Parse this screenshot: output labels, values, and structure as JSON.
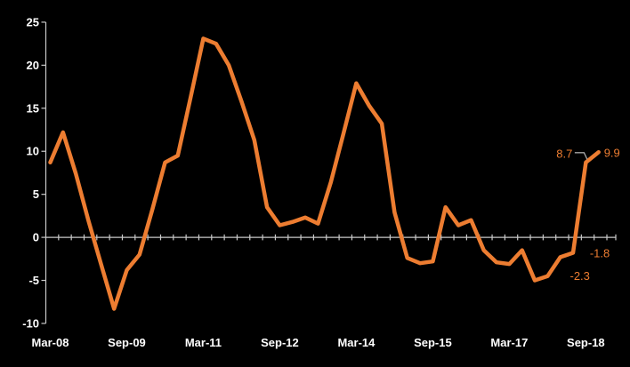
{
  "chart_data": {
    "type": "line",
    "title": "",
    "xlabel": "",
    "ylabel": "",
    "grid": false,
    "legend_position": "none",
    "background_color": "#000000",
    "series_color": "#ED7D31",
    "axis_color": "#C9C9C9",
    "axis_label_color": "#FFFFFF",
    "data_label_color": "#ED7D31",
    "leader_line_color": "#A6A6A6",
    "ylim": [
      -10,
      25
    ],
    "y_ticks": [
      25,
      20,
      15,
      10,
      5,
      0,
      -5,
      -10
    ],
    "x_tick_labels": [
      "Mar-08",
      "Sep-09",
      "Mar-11",
      "Sep-12",
      "Mar-14",
      "Sep-15",
      "Mar-17",
      "Sep-18"
    ],
    "x_tick_label_every": 6,
    "x": [
      "Mar-08",
      "Jun-08",
      "Sep-08",
      "Dec-08",
      "Mar-09",
      "Jun-09",
      "Sep-09",
      "Dec-09",
      "Mar-10",
      "Jun-10",
      "Sep-10",
      "Dec-10",
      "Mar-11",
      "Jun-11",
      "Sep-11",
      "Dec-11",
      "Mar-12",
      "Jun-12",
      "Sep-12",
      "Dec-12",
      "Mar-13",
      "Jun-13",
      "Sep-13",
      "Dec-13",
      "Mar-14",
      "Jun-14",
      "Sep-14",
      "Dec-14",
      "Mar-15",
      "Jun-15",
      "Sep-15",
      "Dec-15",
      "Mar-16",
      "Jun-16",
      "Sep-16",
      "Dec-16",
      "Mar-17",
      "Jun-17",
      "Sep-17",
      "Dec-17",
      "Mar-18",
      "Jun-18",
      "Sep-18",
      "Dec-18"
    ],
    "values": [
      8.7,
      12.2,
      7.4,
      1.9,
      -3.2,
      -8.3,
      -3.8,
      -2.0,
      3.2,
      8.7,
      9.5,
      16.2,
      23.1,
      22.5,
      20.0,
      15.8,
      11.3,
      3.5,
      1.4,
      1.8,
      2.3,
      1.6,
      6.4,
      12.1,
      17.9,
      15.3,
      13.2,
      2.9,
      -2.4,
      -3.0,
      -2.8,
      3.5,
      1.4,
      2.0,
      -1.5,
      -2.9,
      -3.1,
      -1.5,
      -5.0,
      -4.5,
      -2.3,
      -1.8,
      8.7,
      9.9
    ],
    "point_labels": [
      {
        "x": "Sep-18",
        "text": "8.7",
        "placement": "left-leader"
      },
      {
        "x": "Dec-18",
        "text": "9.9",
        "placement": "right"
      },
      {
        "x": "Jun-18",
        "text": "-1.8",
        "placement": "right-offset"
      },
      {
        "x": "Mar-18",
        "text": "-2.3",
        "placement": "below-right"
      }
    ]
  }
}
